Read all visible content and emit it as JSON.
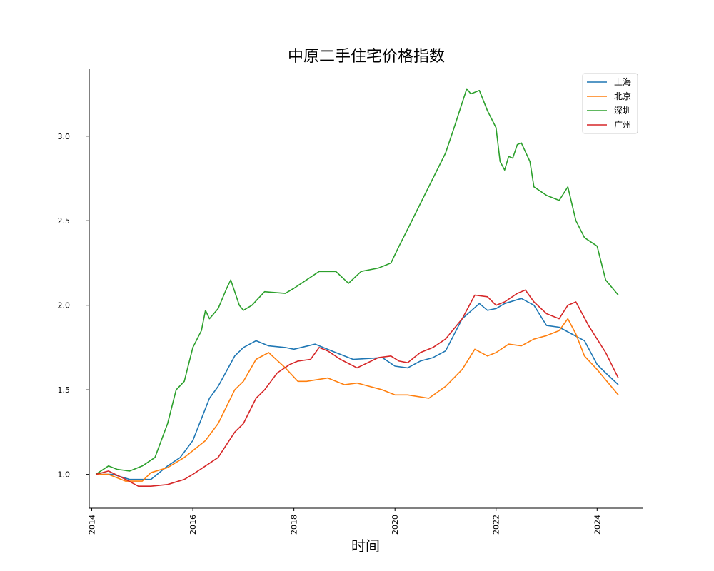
{
  "chart_data": {
    "type": "line",
    "title": "中原二手住宅价格指数",
    "xlabel": "时间",
    "ylabel": "",
    "xlim": [
      2013.95,
      2024.9
    ],
    "ylim": [
      0.8,
      3.4
    ],
    "x_ticks": [
      2014,
      2016,
      2018,
      2020,
      2022,
      2024
    ],
    "y_ticks": [
      1.0,
      1.5,
      2.0,
      2.5,
      3.0
    ],
    "y_tick_labels": [
      "1.0",
      "1.5",
      "2.0",
      "2.5",
      "3.0"
    ],
    "grid": false,
    "legend_position": "top-right",
    "series": [
      {
        "name": "上海",
        "color": "#1f77b4",
        "x": [
          2014.08,
          2014.42,
          2014.75,
          2015.17,
          2015.5,
          2015.75,
          2016.0,
          2016.33,
          2016.5,
          2016.83,
          2017.0,
          2017.25,
          2017.5,
          2017.83,
          2018.0,
          2018.42,
          2018.75,
          2019.0,
          2019.17,
          2019.75,
          2020.0,
          2020.25,
          2020.5,
          2020.75,
          2021.0,
          2021.33,
          2021.67,
          2021.83,
          2022.0,
          2022.17,
          2022.5,
          2022.75,
          2023.0,
          2023.25,
          2023.5,
          2023.75,
          2024.0,
          2024.17,
          2024.42
        ],
        "y": [
          1.0,
          1.0,
          0.97,
          0.97,
          1.05,
          1.1,
          1.2,
          1.45,
          1.52,
          1.7,
          1.75,
          1.79,
          1.76,
          1.75,
          1.74,
          1.77,
          1.73,
          1.7,
          1.68,
          1.69,
          1.64,
          1.63,
          1.67,
          1.69,
          1.73,
          1.92,
          2.01,
          1.97,
          1.98,
          2.01,
          2.04,
          2.0,
          1.88,
          1.87,
          1.83,
          1.79,
          1.65,
          1.6,
          1.53
        ]
      },
      {
        "name": "北京",
        "color": "#ff7f0e",
        "x": [
          2014.08,
          2014.33,
          2014.67,
          2015.0,
          2015.17,
          2015.5,
          2015.83,
          2016.0,
          2016.25,
          2016.5,
          2016.83,
          2017.0,
          2017.25,
          2017.5,
          2017.83,
          2018.08,
          2018.25,
          2018.67,
          2019.0,
          2019.25,
          2019.75,
          2020.0,
          2020.25,
          2020.67,
          2021.0,
          2021.33,
          2021.58,
          2021.83,
          2022.0,
          2022.25,
          2022.5,
          2022.75,
          2023.0,
          2023.25,
          2023.42,
          2023.58,
          2023.75,
          2024.0,
          2024.25,
          2024.42
        ],
        "y": [
          1.0,
          1.0,
          0.96,
          0.96,
          1.01,
          1.04,
          1.1,
          1.14,
          1.2,
          1.3,
          1.5,
          1.55,
          1.68,
          1.72,
          1.63,
          1.55,
          1.55,
          1.57,
          1.53,
          1.54,
          1.5,
          1.47,
          1.47,
          1.45,
          1.52,
          1.62,
          1.74,
          1.7,
          1.72,
          1.77,
          1.76,
          1.8,
          1.82,
          1.85,
          1.92,
          1.83,
          1.7,
          1.62,
          1.53,
          1.47
        ]
      },
      {
        "name": "深圳",
        "color": "#2ca02c",
        "x": [
          2014.08,
          2014.33,
          2014.5,
          2014.75,
          2015.0,
          2015.25,
          2015.5,
          2015.67,
          2015.83,
          2016.0,
          2016.17,
          2016.25,
          2016.33,
          2016.5,
          2016.67,
          2016.75,
          2016.92,
          2017.0,
          2017.17,
          2017.42,
          2017.83,
          2018.0,
          2018.25,
          2018.5,
          2018.83,
          2019.08,
          2019.33,
          2019.67,
          2019.92,
          2020.08,
          2020.25,
          2020.5,
          2020.75,
          2021.0,
          2021.17,
          2021.42,
          2021.5,
          2021.67,
          2021.83,
          2022.0,
          2022.08,
          2022.17,
          2022.25,
          2022.33,
          2022.42,
          2022.5,
          2022.67,
          2022.75,
          2023.0,
          2023.25,
          2023.42,
          2023.58,
          2023.75,
          2024.0,
          2024.17,
          2024.42
        ],
        "y": [
          1.0,
          1.05,
          1.03,
          1.02,
          1.05,
          1.1,
          1.3,
          1.5,
          1.55,
          1.75,
          1.85,
          1.97,
          1.92,
          1.98,
          2.1,
          2.15,
          2.0,
          1.97,
          2.0,
          2.08,
          2.07,
          2.1,
          2.15,
          2.2,
          2.2,
          2.13,
          2.2,
          2.22,
          2.25,
          2.35,
          2.45,
          2.6,
          2.75,
          2.9,
          3.05,
          3.28,
          3.25,
          3.27,
          3.15,
          3.05,
          2.85,
          2.8,
          2.88,
          2.87,
          2.95,
          2.96,
          2.85,
          2.7,
          2.65,
          2.62,
          2.7,
          2.5,
          2.4,
          2.35,
          2.15,
          2.06
        ]
      },
      {
        "name": "广州",
        "color": "#d62728",
        "x": [
          2014.08,
          2014.33,
          2014.67,
          2014.92,
          2015.17,
          2015.5,
          2015.83,
          2016.0,
          2016.25,
          2016.5,
          2016.83,
          2017.0,
          2017.25,
          2017.42,
          2017.67,
          2017.92,
          2018.08,
          2018.33,
          2018.5,
          2018.67,
          2018.92,
          2019.25,
          2019.67,
          2019.92,
          2020.08,
          2020.25,
          2020.5,
          2020.75,
          2021.0,
          2021.33,
          2021.58,
          2021.83,
          2022.0,
          2022.17,
          2022.42,
          2022.58,
          2022.75,
          2023.0,
          2023.25,
          2023.42,
          2023.58,
          2023.83,
          2024.0,
          2024.17,
          2024.42
        ],
        "y": [
          1.0,
          1.02,
          0.97,
          0.93,
          0.93,
          0.94,
          0.97,
          1.0,
          1.05,
          1.1,
          1.25,
          1.3,
          1.45,
          1.5,
          1.6,
          1.65,
          1.67,
          1.68,
          1.75,
          1.73,
          1.68,
          1.63,
          1.69,
          1.7,
          1.67,
          1.66,
          1.72,
          1.75,
          1.8,
          1.92,
          2.06,
          2.05,
          2.0,
          2.02,
          2.07,
          2.09,
          2.02,
          1.95,
          1.92,
          2.0,
          2.02,
          1.88,
          1.8,
          1.72,
          1.57
        ]
      }
    ]
  }
}
